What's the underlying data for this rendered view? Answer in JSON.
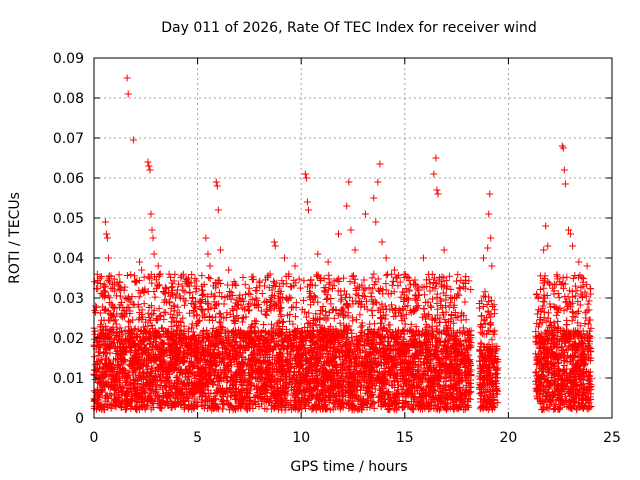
{
  "chart_data": {
    "type": "scatter",
    "title": "Day 011 of 2026, Rate Of TEC Index for receiver wind",
    "xlabel": "GPS time / hours",
    "ylabel": "ROTI / TECUs",
    "xlim": [
      0,
      25
    ],
    "ylim": [
      0,
      0.09
    ],
    "xticks": [
      0,
      5,
      10,
      15,
      20,
      25
    ],
    "xtick_labels": [
      "0",
      "5",
      "10",
      "15",
      "20",
      "25"
    ],
    "yticks": [
      0,
      0.01,
      0.02,
      0.03,
      0.04,
      0.05,
      0.06,
      0.07,
      0.08,
      0.09
    ],
    "ytick_labels": [
      "0",
      "0.01",
      "0.02",
      "0.03",
      "0.04",
      "0.05",
      "0.06",
      "0.07",
      "0.08",
      "0.09"
    ],
    "grid": true,
    "marker": "+",
    "color": "#ff0000",
    "series": [
      {
        "points": [
          [
            0.1,
            0.012
          ],
          [
            0.2,
            0.018
          ],
          [
            0.3,
            0.022
          ],
          [
            0.4,
            0.031
          ],
          [
            0.5,
            0.027
          ],
          [
            0.55,
            0.049
          ],
          [
            0.6,
            0.046
          ],
          [
            0.65,
            0.045
          ],
          [
            0.7,
            0.04
          ],
          [
            0.75,
            0.034
          ],
          [
            0.9,
            0.028
          ],
          [
            1.1,
            0.026
          ],
          [
            1.3,
            0.032
          ],
          [
            1.5,
            0.03
          ],
          [
            1.6,
            0.085
          ],
          [
            1.65,
            0.081
          ],
          [
            1.9,
            0.0695
          ],
          [
            2.2,
            0.039
          ],
          [
            2.3,
            0.037
          ],
          [
            2.6,
            0.064
          ],
          [
            2.65,
            0.063
          ],
          [
            2.7,
            0.062
          ],
          [
            2.75,
            0.051
          ],
          [
            2.8,
            0.047
          ],
          [
            2.85,
            0.045
          ],
          [
            2.9,
            0.041
          ],
          [
            3.1,
            0.038
          ],
          [
            3.2,
            0.036
          ],
          [
            3.5,
            0.029
          ],
          [
            3.8,
            0.025
          ],
          [
            4.0,
            0.031
          ],
          [
            4.2,
            0.024
          ],
          [
            4.6,
            0.033
          ],
          [
            5.2,
            0.032
          ],
          [
            5.4,
            0.045
          ],
          [
            5.5,
            0.041
          ],
          [
            5.6,
            0.038
          ],
          [
            5.9,
            0.059
          ],
          [
            5.95,
            0.058
          ],
          [
            6.0,
            0.052
          ],
          [
            6.1,
            0.042
          ],
          [
            6.5,
            0.037
          ],
          [
            7.0,
            0.03
          ],
          [
            7.5,
            0.027
          ],
          [
            8.0,
            0.033
          ],
          [
            8.5,
            0.036
          ],
          [
            8.7,
            0.044
          ],
          [
            8.75,
            0.043
          ],
          [
            9.2,
            0.04
          ],
          [
            9.4,
            0.036
          ],
          [
            9.7,
            0.038
          ],
          [
            10.2,
            0.061
          ],
          [
            10.25,
            0.06
          ],
          [
            10.3,
            0.054
          ],
          [
            10.35,
            0.052
          ],
          [
            10.8,
            0.041
          ],
          [
            11.3,
            0.039
          ],
          [
            11.8,
            0.046
          ],
          [
            12.2,
            0.053
          ],
          [
            12.3,
            0.059
          ],
          [
            12.4,
            0.047
          ],
          [
            12.6,
            0.042
          ],
          [
            13.1,
            0.051
          ],
          [
            13.5,
            0.055
          ],
          [
            13.6,
            0.049
          ],
          [
            13.7,
            0.059
          ],
          [
            13.8,
            0.0635
          ],
          [
            13.9,
            0.044
          ],
          [
            14.1,
            0.04
          ],
          [
            14.5,
            0.037
          ],
          [
            15.2,
            0.035
          ],
          [
            15.6,
            0.033
          ],
          [
            15.9,
            0.04
          ],
          [
            16.4,
            0.061
          ],
          [
            16.5,
            0.065
          ],
          [
            16.55,
            0.057
          ],
          [
            16.6,
            0.056
          ],
          [
            16.9,
            0.042
          ],
          [
            17.4,
            0.03
          ],
          [
            17.9,
            0.029
          ],
          [
            18.8,
            0.04
          ],
          [
            19.0,
            0.0425
          ],
          [
            19.05,
            0.051
          ],
          [
            19.1,
            0.056
          ],
          [
            19.15,
            0.045
          ],
          [
            19.2,
            0.038
          ],
          [
            21.4,
            0.026
          ],
          [
            21.7,
            0.042
          ],
          [
            21.8,
            0.048
          ],
          [
            21.9,
            0.043
          ],
          [
            22.2,
            0.031
          ],
          [
            22.6,
            0.068
          ],
          [
            22.65,
            0.0675
          ],
          [
            22.7,
            0.062
          ],
          [
            22.75,
            0.0585
          ],
          [
            22.9,
            0.047
          ],
          [
            23.0,
            0.046
          ],
          [
            23.1,
            0.043
          ],
          [
            23.4,
            0.039
          ],
          [
            23.8,
            0.038
          ]
        ]
      }
    ]
  }
}
